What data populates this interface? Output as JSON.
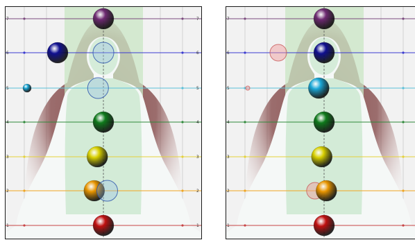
{
  "colors": {
    "background": "#f2f2f2",
    "frame": "#1a1a1a",
    "centre_band": "#c9e6c4",
    "aura_inner": "#7a3a3a",
    "aura_outer": "#e9d9d6",
    "silhouette": "#f5f8f7",
    "torso": "#cde9d1",
    "grid": "#c8c8c8"
  },
  "levels": [
    {
      "label": "7",
      "line_color": "#7b4a7e",
      "sphere_color": "#6e2a72"
    },
    {
      "label": "6",
      "line_color": "#3a3ad1",
      "sphere_color": "#101090"
    },
    {
      "label": "5",
      "line_color": "#5bc0d8",
      "sphere_color": "#1aa8d8"
    },
    {
      "label": "4",
      "line_color": "#2f8a3a",
      "sphere_color": "#0f7a1c"
    },
    {
      "label": "3",
      "line_color": "#e5d23a",
      "sphere_color": "#d8d000"
    },
    {
      "label": "2",
      "line_color": "#f0a520",
      "sphere_color": "#e89500"
    },
    {
      "label": "1",
      "line_color": "#c74545",
      "sphere_color": "#c01010"
    }
  ],
  "panels": [
    {
      "id": "left",
      "spheres": [
        {
          "level": 7,
          "offset": 0.0,
          "style": "solid"
        },
        {
          "level": 6,
          "offset": -0.6,
          "style": "solid"
        },
        {
          "level": 6,
          "offset": 0.0,
          "style": "ghost"
        },
        {
          "level": 5,
          "offset": -1.0,
          "style": "solid-small"
        },
        {
          "level": 5,
          "offset": -0.07,
          "style": "ghost"
        },
        {
          "level": 4,
          "offset": 0.0,
          "style": "solid"
        },
        {
          "level": 3,
          "offset": -0.08,
          "style": "solid"
        },
        {
          "level": 2,
          "offset": -0.12,
          "style": "solid"
        },
        {
          "level": 2,
          "offset": 0.05,
          "style": "ghost"
        },
        {
          "level": 1,
          "offset": 0.0,
          "style": "solid"
        }
      ]
    },
    {
      "id": "right",
      "spheres": [
        {
          "level": 7,
          "offset": 0.0,
          "style": "solid"
        },
        {
          "level": 6,
          "offset": -0.6,
          "style": "ghost-pink"
        },
        {
          "level": 6,
          "offset": 0.0,
          "style": "solid"
        },
        {
          "level": 5,
          "offset": -1.0,
          "style": "ghost-pink-small"
        },
        {
          "level": 5,
          "offset": -0.07,
          "style": "solid"
        },
        {
          "level": 4,
          "offset": 0.0,
          "style": "solid"
        },
        {
          "level": 3,
          "offset": -0.03,
          "style": "solid"
        },
        {
          "level": 2,
          "offset": -0.12,
          "style": "ghost-pink"
        },
        {
          "level": 2,
          "offset": 0.03,
          "style": "solid"
        },
        {
          "level": 1,
          "offset": 0.0,
          "style": "solid"
        }
      ]
    }
  ]
}
